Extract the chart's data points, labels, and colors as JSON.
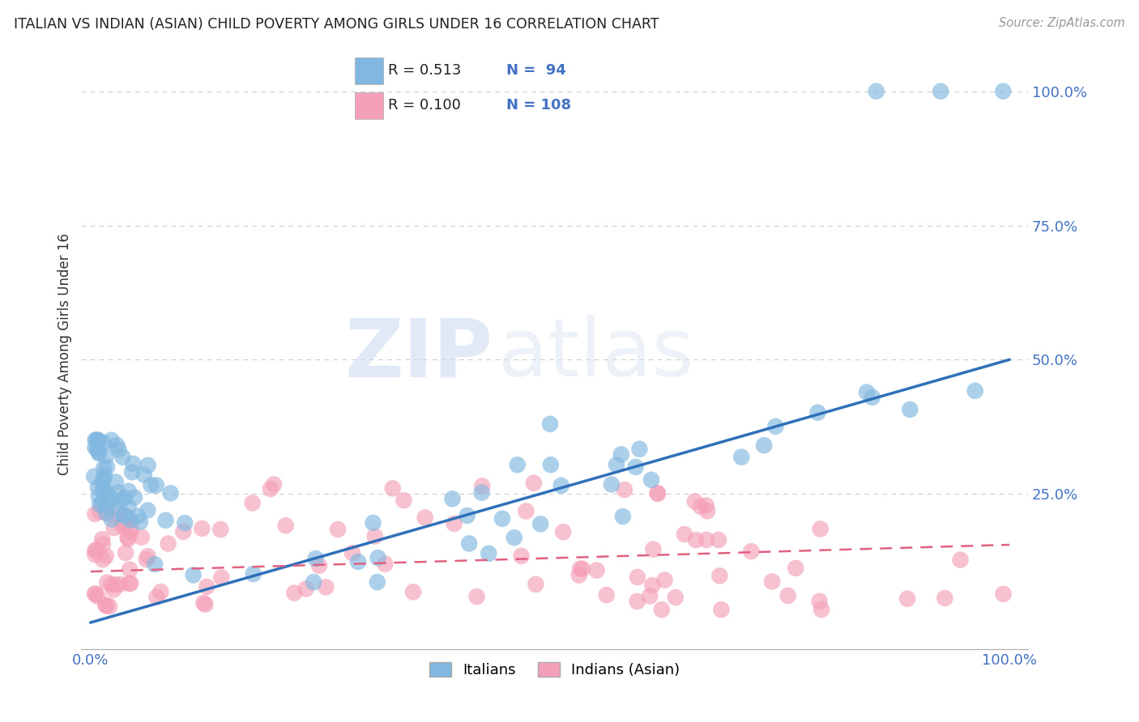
{
  "title": "ITALIAN VS INDIAN (ASIAN) CHILD POVERTY AMONG GIRLS UNDER 16 CORRELATION CHART",
  "source": "Source: ZipAtlas.com",
  "ylabel": "Child Poverty Among Girls Under 16",
  "watermark_zip": "ZIP",
  "watermark_atlas": "atlas",
  "legend_blue_R": "0.513",
  "legend_blue_N": "94",
  "legend_pink_R": "0.100",
  "legend_pink_N": "108",
  "legend_blue_label": "Italians",
  "legend_pink_label": "Indians (Asian)",
  "blue_color": "#82b8e0",
  "pink_color": "#f4a0b8",
  "blue_line_color": "#3070b8",
  "pink_line_color": "#e06080",
  "background_color": "#ffffff",
  "grid_color": "#cccccc",
  "title_color": "#222222",
  "tick_color": "#4472c4",
  "blue_line_start_y": 0.01,
  "blue_line_end_y": 0.5,
  "pink_line_start_y": 0.105,
  "pink_line_end_y": 0.155,
  "xlim": [
    0.0,
    1.0
  ],
  "ylim": [
    0.0,
    1.0
  ],
  "yticks": [
    0.0,
    0.25,
    0.5,
    0.75,
    1.0
  ],
  "ytick_labels": [
    "",
    "25.0%",
    "50.0%",
    "75.0%",
    "100.0%"
  ],
  "xtick_labels": [
    "0.0%",
    "100.0%"
  ]
}
